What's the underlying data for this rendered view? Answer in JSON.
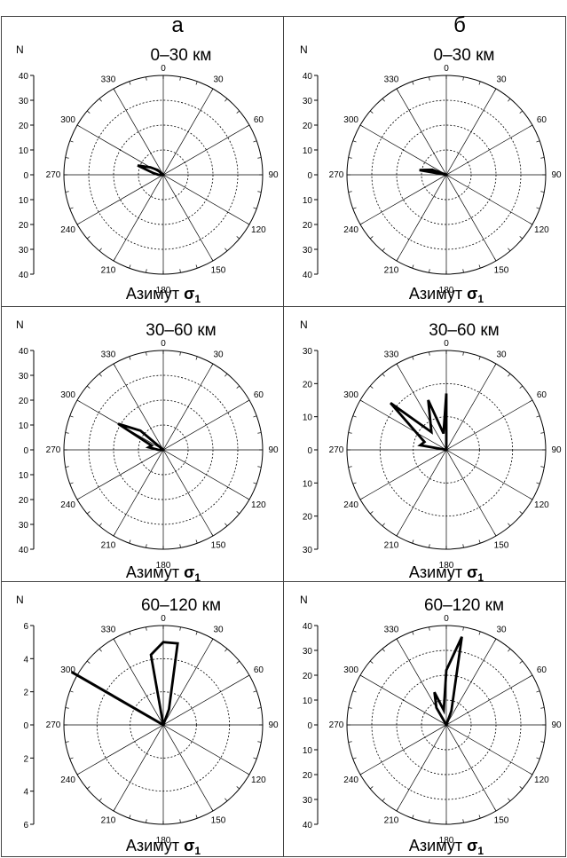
{
  "figure": {
    "column_labels": [
      "а",
      "б"
    ]
  },
  "chart_data": [
    {
      "id": "a1",
      "type": "rose",
      "title": "0–30 км",
      "ylabel": "N",
      "xlabel": "Азимут",
      "xlabel_symbol": "σ",
      "xlabel_subscript": "1",
      "rmax": 40,
      "rings": [
        10,
        20,
        30
      ],
      "axis_ticks": [
        "40",
        "30",
        "20",
        "10",
        "0",
        "10",
        "20",
        "30",
        "40"
      ],
      "angle_labels": [
        "0",
        "30",
        "60",
        "90",
        "120",
        "150",
        "180",
        "210",
        "240",
        "270",
        "300",
        "330"
      ],
      "directions_deg": [
        270,
        280,
        290,
        300,
        310
      ],
      "counts": [
        2,
        4,
        11,
        6,
        3
      ]
    },
    {
      "id": "b1",
      "type": "rose",
      "title": "0–30 км",
      "ylabel": "N",
      "xlabel": "Азимут",
      "xlabel_symbol": "σ",
      "xlabel_subscript": "1",
      "rmax": 40,
      "rings": [
        10,
        20,
        30
      ],
      "axis_ticks": [
        "40",
        "30",
        "20",
        "10",
        "0",
        "10",
        "20",
        "30",
        "40"
      ],
      "angle_labels": [
        "0",
        "30",
        "60",
        "90",
        "120",
        "150",
        "180",
        "210",
        "240",
        "270",
        "300",
        "330"
      ],
      "directions_deg": [
        280,
        290
      ],
      "counts": [
        11,
        6
      ]
    },
    {
      "id": "a2",
      "type": "rose",
      "title": "30–60 км",
      "ylabel": "N",
      "xlabel": "Азимут",
      "xlabel_symbol": "σ",
      "xlabel_subscript": "1",
      "rmax": 40,
      "rings": [
        10,
        20,
        30
      ],
      "axis_ticks": [
        "40",
        "30",
        "20",
        "10",
        "0",
        "10",
        "20",
        "30",
        "40"
      ],
      "angle_labels": [
        "0",
        "30",
        "60",
        "90",
        "120",
        "150",
        "180",
        "210",
        "240",
        "270",
        "300",
        "330"
      ],
      "directions_deg": [
        270,
        280,
        290,
        300,
        310
      ],
      "counts": [
        2,
        6,
        5,
        21,
        12
      ]
    },
    {
      "id": "b2",
      "type": "rose",
      "title": "30–60 км",
      "ylabel": "N",
      "xlabel": "Азимут",
      "xlabel_symbol": "σ",
      "xlabel_subscript": "1",
      "rmax": 30,
      "rings": [
        10,
        20
      ],
      "axis_ticks": [
        "30",
        "20",
        "10",
        "0",
        "10",
        "20",
        "30"
      ],
      "angle_labels": [
        "0",
        "30",
        "60",
        "90",
        "120",
        "150",
        "180",
        "210",
        "240",
        "270",
        "300",
        "330"
      ],
      "directions_deg": [
        280,
        290,
        310,
        320,
        340,
        350,
        360
      ],
      "counts": [
        8,
        7,
        22,
        7,
        16,
        5,
        17
      ]
    },
    {
      "id": "a3",
      "type": "rose",
      "title": "60–120 км",
      "ylabel": "N",
      "xlabel": "Азимут",
      "xlabel_symbol": "σ",
      "xlabel_subscript": "1",
      "rmax": 6,
      "rings": [
        2,
        4
      ],
      "axis_ticks": [
        "6",
        "4",
        "2",
        "0",
        "2",
        "4",
        "6"
      ],
      "angle_labels": [
        "0",
        "30",
        "60",
        "90",
        "120",
        "150",
        "180",
        "210",
        "240",
        "270",
        "300",
        "330"
      ],
      "directions_deg": [
        300,
        350,
        360,
        10,
        20
      ],
      "counts": [
        6.4,
        4.3,
        5,
        5,
        1
      ],
      "series_order": "radial segment at 300, petal 350→20"
    },
    {
      "id": "b3",
      "type": "rose",
      "title": "60–120 км",
      "ylabel": "N",
      "xlabel": "Азимут",
      "xlabel_symbol": "σ",
      "xlabel_subscript": "1",
      "rmax": 40,
      "rings": [
        10,
        20,
        30
      ],
      "axis_ticks": [
        "40",
        "30",
        "20",
        "10",
        "0",
        "10",
        "20",
        "30",
        "40"
      ],
      "angle_labels": [
        "0",
        "30",
        "60",
        "90",
        "120",
        "150",
        "180",
        "210",
        "240",
        "270",
        "300",
        "330"
      ],
      "directions_deg": [
        330,
        340,
        350,
        0,
        10,
        20
      ],
      "counts": [
        8,
        14,
        6,
        22,
        36,
        6
      ]
    }
  ]
}
